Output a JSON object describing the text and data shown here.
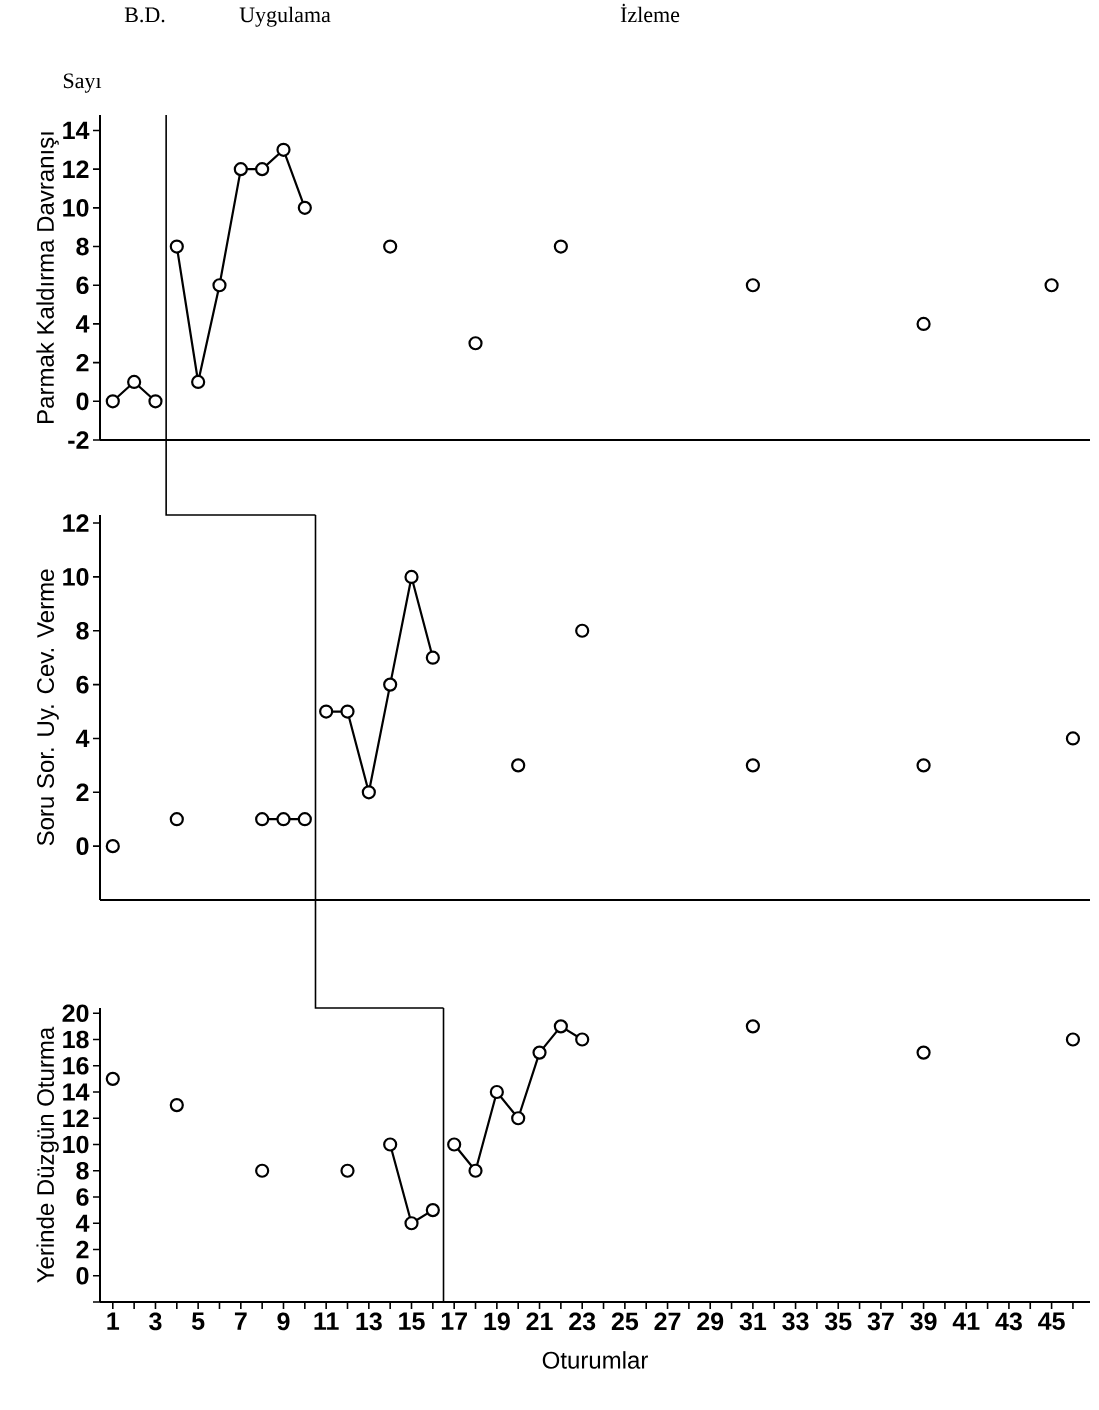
{
  "chart_data": [
    {
      "type": "line",
      "ylabel": "Parmak Kaldırma Davranışı",
      "annotations": [
        "B.D.",
        "Uygulama",
        "İzleme",
        "Sayı"
      ],
      "marker": "circle",
      "tick_labels": "y",
      "xlim": [
        0.4,
        46.8
      ],
      "ylim": [
        -2,
        14.8
      ],
      "yticks": [
        -2,
        0,
        2,
        4,
        6,
        8,
        10,
        12,
        14
      ],
      "ref_lines": [
        {
          "axis": "x",
          "value": 3.5,
          "color": "#000000"
        }
      ],
      "series": [
        {
          "color": "#000000",
          "x": [
            1,
            2,
            3
          ],
          "values": [
            0,
            1,
            0
          ]
        },
        {
          "color": "#000000",
          "x": [
            4,
            5,
            6,
            7,
            8,
            9,
            10
          ],
          "values": [
            8,
            1,
            6,
            12,
            12,
            13,
            10
          ]
        },
        {
          "type": "scatter",
          "color": "#000000",
          "x": [
            14,
            18,
            22,
            31,
            39,
            45
          ],
          "values": [
            8,
            3,
            8,
            6,
            4,
            6
          ]
        }
      ]
    },
    {
      "type": "line",
      "ylabel": "Soru Sor. Uy. Cev. Verme",
      "marker": "circle",
      "tick_labels": "y",
      "xlim": [
        0.4,
        46.8
      ],
      "ylim": [
        -2,
        12.3
      ],
      "yticks": [
        0,
        2,
        4,
        6,
        8,
        10,
        12
      ],
      "ref_lines": [
        {
          "axis": "x",
          "value": 10.5,
          "color": "#000000"
        }
      ],
      "series": [
        {
          "color": "#000000",
          "x": [
            1,
            2,
            3,
            4,
            5,
            6,
            7,
            8,
            9,
            10
          ],
          "values": [
            0,
            null,
            null,
            1,
            null,
            null,
            null,
            1,
            1,
            1
          ]
        },
        {
          "color": "#000000",
          "x": [
            11,
            12,
            13,
            14,
            15,
            16
          ],
          "values": [
            5,
            5,
            2,
            6,
            10,
            7
          ]
        },
        {
          "type": "scatter",
          "color": "#000000",
          "x": [
            20,
            23,
            31,
            39,
            46
          ],
          "values": [
            3,
            8,
            3,
            3,
            4
          ]
        }
      ]
    },
    {
      "type": "line",
      "ylabel": "Yerinde Düzgün Oturma",
      "xlabel": "Oturumlar",
      "marker": "circle",
      "xlim": [
        0.4,
        46.8
      ],
      "ylim": [
        -2,
        20.4
      ],
      "yticks": [
        {
          "value": -2,
          "label": null
        },
        0,
        2,
        4,
        6,
        8,
        10,
        12,
        14,
        16,
        18,
        20
      ],
      "xticks": [
        1,
        {
          "value": 2,
          "label": null
        },
        3,
        {
          "value": 4,
          "label": null
        },
        5,
        {
          "value": 6,
          "label": null
        },
        7,
        {
          "value": 8,
          "label": null
        },
        9,
        {
          "value": 10,
          "label": null
        },
        11,
        {
          "value": 12,
          "label": null
        },
        13,
        {
          "value": 14,
          "label": null
        },
        15,
        {
          "value": 16,
          "label": null
        },
        17,
        {
          "value": 18,
          "label": null
        },
        19,
        {
          "value": 20,
          "label": null
        },
        21,
        {
          "value": 22,
          "label": null
        },
        23,
        {
          "value": 24,
          "label": null
        },
        25,
        {
          "value": 26,
          "label": null
        },
        27,
        {
          "value": 28,
          "label": null
        },
        29,
        {
          "value": 30,
          "label": null
        },
        31,
        {
          "value": 32,
          "label": null
        },
        33,
        {
          "value": 34,
          "label": null
        },
        35,
        {
          "value": 36,
          "label": null
        },
        37,
        {
          "value": 38,
          "label": null
        },
        39,
        {
          "value": 40,
          "label": null
        },
        41,
        {
          "value": 42,
          "label": null
        },
        43,
        {
          "value": 44,
          "label": null
        },
        45,
        {
          "value": 46,
          "label": null
        }
      ],
      "ref_lines": [
        {
          "axis": "x",
          "value": 16.5,
          "color": "#000000"
        }
      ],
      "series": [
        {
          "color": "#000000",
          "x": [
            1,
            2,
            3,
            4,
            5,
            6,
            7,
            8,
            9,
            10,
            11,
            12,
            13,
            14,
            15,
            16
          ],
          "values": [
            15,
            null,
            null,
            13,
            null,
            null,
            null,
            8,
            null,
            null,
            null,
            8,
            null,
            10,
            4,
            5
          ]
        },
        {
          "color": "#000000",
          "x": [
            17,
            18,
            19,
            20,
            21,
            22,
            23
          ],
          "values": [
            10,
            8,
            14,
            12,
            17,
            19,
            18
          ]
        },
        {
          "type": "scatter",
          "color": "#000000",
          "x": [
            31,
            39,
            46
          ],
          "values": [
            19,
            17,
            18
          ]
        }
      ]
    }
  ]
}
